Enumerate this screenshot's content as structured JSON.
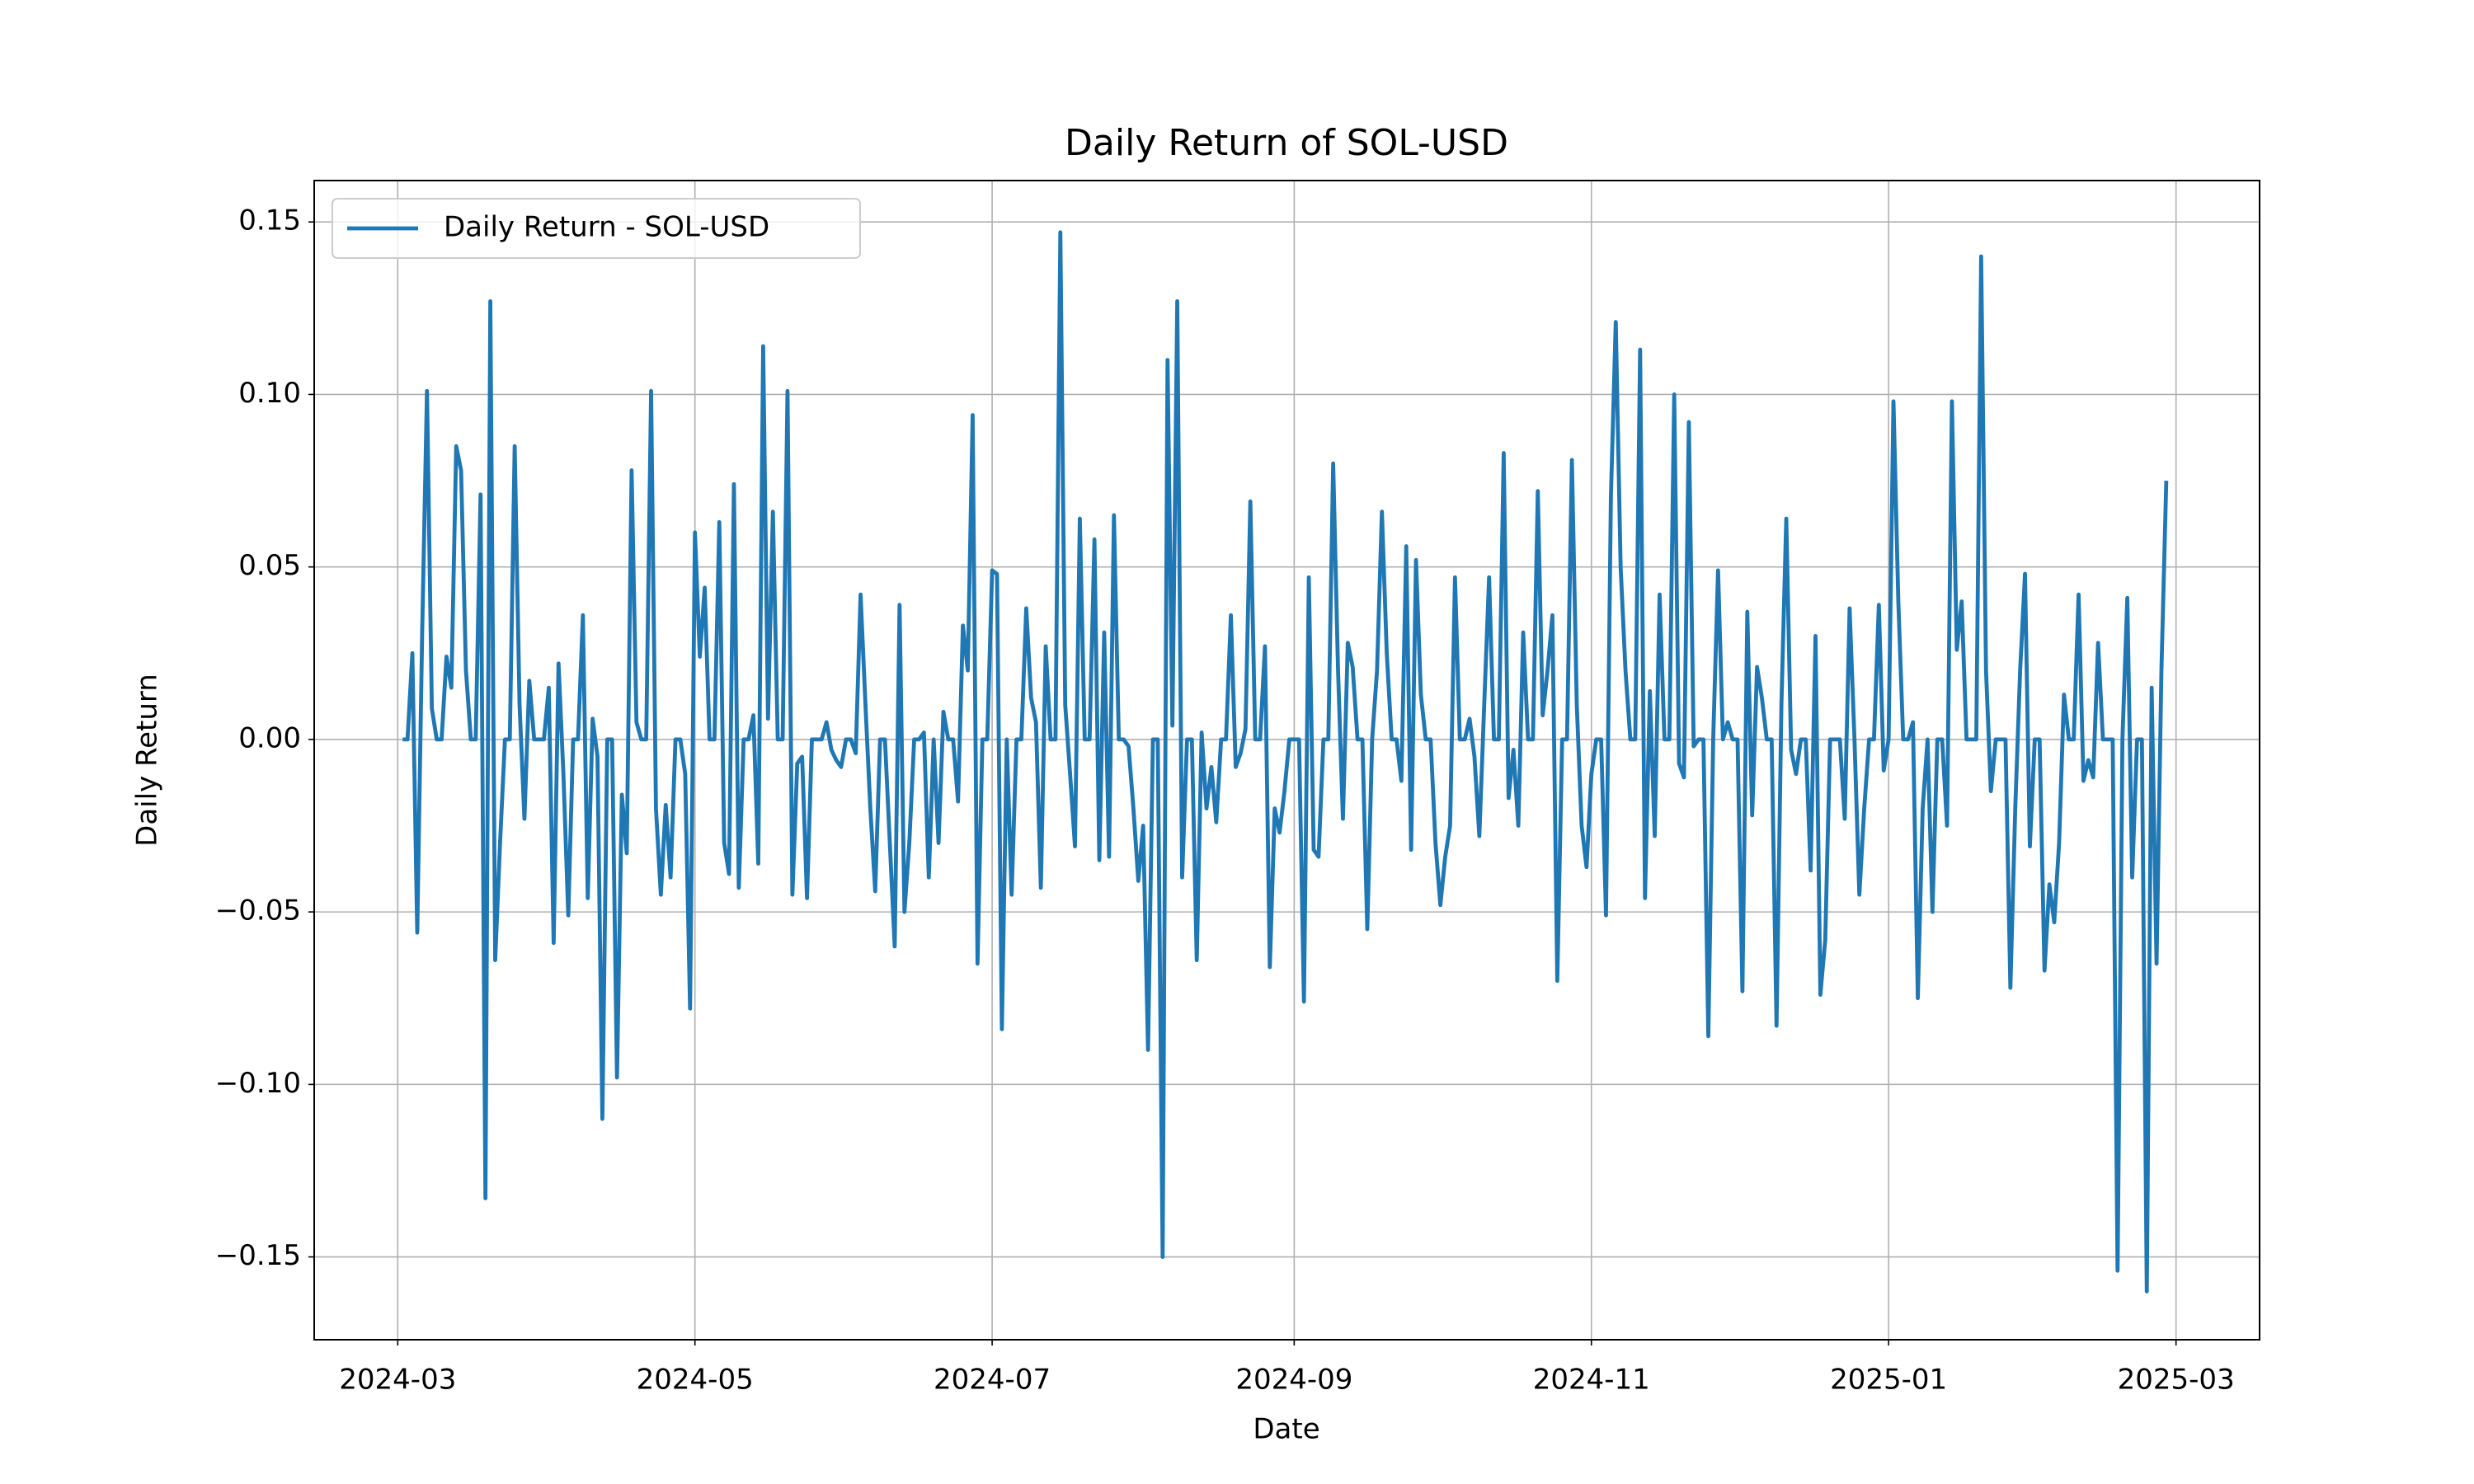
{
  "chart_data": {
    "type": "line",
    "title": "Daily Return of SOL-USD",
    "xlabel": "Date",
    "ylabel": "Daily Return",
    "series": [
      {
        "name": "Daily Return - SOL-USD",
        "color": "#1f77b4",
        "values": [
          0,
          0,
          0.025,
          -0.056,
          0.03,
          0.101,
          0.009,
          0,
          0,
          0.024,
          0.015,
          0.085,
          0.078,
          0.02,
          0,
          0,
          0.071,
          -0.133,
          0.127,
          -0.064,
          -0.03,
          0,
          0,
          0.085,
          0.01,
          -0.023,
          0.017,
          0,
          0,
          0,
          0.015,
          -0.059,
          0.022,
          -0.01,
          -0.051,
          0,
          0,
          0.036,
          -0.046,
          0.006,
          -0.005,
          -0.11,
          0,
          0,
          -0.098,
          -0.016,
          -0.033,
          0.078,
          0.005,
          0,
          0,
          0.101,
          -0.02,
          -0.045,
          -0.019,
          -0.04,
          0,
          0,
          -0.01,
          -0.078,
          0.06,
          0.024,
          0.044,
          0,
          0,
          0.063,
          -0.03,
          -0.039,
          0.074,
          -0.043,
          0,
          0,
          0.007,
          -0.036,
          0.114,
          0.006,
          0.066,
          0,
          0,
          0.101,
          -0.045,
          -0.007,
          -0.005,
          -0.046,
          0,
          0,
          0,
          0.005,
          -0.003,
          -0.006,
          -0.008,
          0,
          0,
          -0.004,
          0.042,
          0.01,
          -0.02,
          -0.044,
          0,
          0,
          -0.03,
          -0.06,
          0.039,
          -0.05,
          -0.03,
          0,
          0,
          0.002,
          -0.04,
          0,
          -0.03,
          0.008,
          0,
          0,
          -0.018,
          0.033,
          0.02,
          0.094,
          -0.065,
          0,
          0,
          0.049,
          0.048,
          -0.084,
          0,
          -0.045,
          0,
          0,
          0.038,
          0.012,
          0.005,
          -0.043,
          0.027,
          0,
          0,
          0.147,
          0.01,
          -0.01,
          -0.031,
          0.064,
          0,
          0,
          0.058,
          -0.035,
          0.031,
          -0.034,
          0.065,
          0,
          0,
          -0.002,
          -0.02,
          -0.041,
          -0.025,
          -0.09,
          0,
          0,
          -0.15,
          0.11,
          0.004,
          0.127,
          -0.04,
          0,
          0,
          -0.064,
          0.002,
          -0.02,
          -0.008,
          -0.024,
          0,
          0,
          0.036,
          -0.008,
          -0.004,
          0.003,
          0.069,
          0,
          0,
          0.027,
          -0.066,
          -0.02,
          -0.027,
          -0.015,
          0,
          0,
          0,
          -0.076,
          0.047,
          -0.032,
          -0.034,
          0,
          0,
          0.08,
          0.02,
          -0.023,
          0.028,
          0.021,
          0,
          0,
          -0.055,
          0,
          0.02,
          0.066,
          0.025,
          0,
          0,
          -0.012,
          0.056,
          -0.032,
          0.052,
          0.013,
          0,
          0,
          -0.03,
          -0.048,
          -0.034,
          -0.025,
          0.047,
          0,
          0,
          0.006,
          -0.005,
          -0.028,
          0.01,
          0.047,
          0,
          0,
          0.083,
          -0.017,
          -0.003,
          -0.025,
          0.031,
          0,
          0,
          0.072,
          0.007,
          0.02,
          0.036,
          -0.07,
          0,
          0,
          0.081,
          0.01,
          -0.025,
          -0.037,
          -0.01,
          0,
          0,
          -0.051,
          0.07,
          0.121,
          0.05,
          0.02,
          0,
          0,
          0.113,
          -0.046,
          0.014,
          -0.028,
          0.042,
          0,
          0,
          0.1,
          -0.007,
          -0.011,
          0.092,
          -0.002,
          0,
          0,
          -0.086,
          0,
          0.049,
          0,
          0.005,
          0,
          0,
          -0.073,
          0.037,
          -0.022,
          0.021,
          0.012,
          0,
          0,
          -0.083,
          0.01,
          0.064,
          -0.003,
          -0.01,
          0,
          0,
          -0.038,
          0.03,
          -0.074,
          -0.058,
          0,
          0,
          0,
          -0.023,
          0.038,
          0,
          -0.045,
          -0.02,
          0,
          0,
          0.039,
          -0.009,
          0,
          0.098,
          0.04,
          0,
          0,
          0.005,
          -0.075,
          -0.02,
          0,
          -0.05,
          0,
          0,
          -0.025,
          0.098,
          0.026,
          0.04,
          0,
          0,
          0,
          0.14,
          0.02,
          -0.015,
          0,
          0,
          0,
          -0.072,
          -0.02,
          0.02,
          0.048,
          -0.031,
          0,
          0,
          -0.067,
          -0.042,
          -0.053,
          -0.03,
          0.013,
          0,
          0,
          0.042,
          -0.012,
          -0.006,
          -0.011,
          0.028,
          0,
          0,
          0,
          -0.154,
          0,
          0.041,
          -0.04,
          0,
          0,
          -0.16,
          0.015,
          -0.065,
          0.02,
          0.075
        ]
      }
    ],
    "xlim": [
      -18.15,
      381.15
    ],
    "xticks": [
      {
        "value": -1,
        "label": "2024-03"
      },
      {
        "value": 60,
        "label": "2024-05"
      },
      {
        "value": 121,
        "label": "2024-07"
      },
      {
        "value": 183,
        "label": "2024-09"
      },
      {
        "value": 244,
        "label": "2024-11"
      },
      {
        "value": 305,
        "label": "2025-01"
      },
      {
        "value": 364,
        "label": "2025-03"
      }
    ],
    "ylim": [
      -0.174,
      0.162
    ],
    "yticks": [
      {
        "value": -0.15,
        "label": "−0.15"
      },
      {
        "value": -0.1,
        "label": "−0.10"
      },
      {
        "value": -0.05,
        "label": "−0.05"
      },
      {
        "value": 0,
        "label": "0.00"
      },
      {
        "value": 0.05,
        "label": "0.05"
      },
      {
        "value": 0.1,
        "label": "0.10"
      },
      {
        "value": 0.15,
        "label": "0.15"
      }
    ],
    "grid": true,
    "legend": "upper left"
  }
}
